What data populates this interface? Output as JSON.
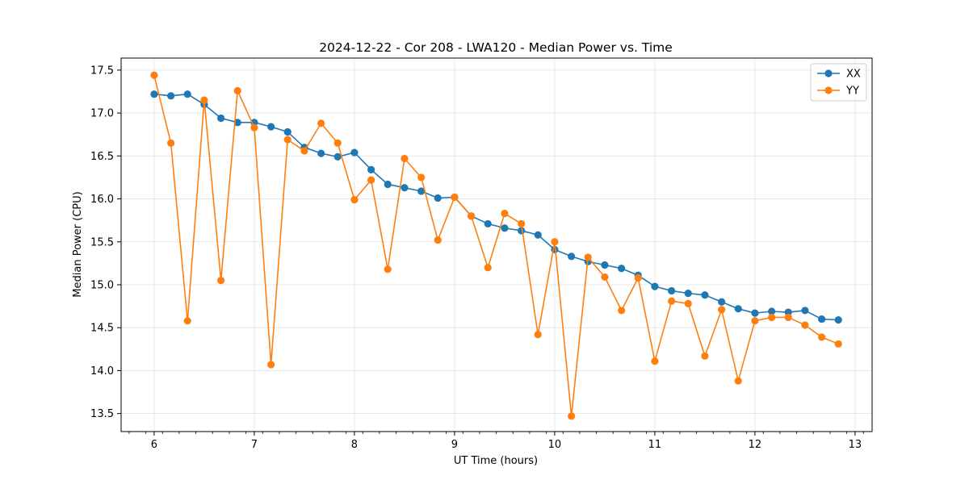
{
  "chart_data": {
    "type": "line",
    "title": "2024-12-22 - Cor 208 - LWA120 - Median Power vs. Time",
    "xlabel": "UT Time (hours)",
    "ylabel": "Median Power (CPU)",
    "xlim": [
      5.67,
      13.17
    ],
    "ylim": [
      13.29,
      17.64
    ],
    "grid": true,
    "legend_position": "top-right",
    "x_ticks": [
      6,
      7,
      8,
      9,
      10,
      11,
      12,
      13
    ],
    "x_tick_labels": [
      "6",
      "7",
      "8",
      "9",
      "10",
      "11",
      "12",
      "13"
    ],
    "x_minor_ticks": [
      5.75,
      5.917,
      6.083,
      6.25,
      6.417,
      6.583,
      6.75,
      6.917,
      7.083,
      7.25,
      7.417,
      7.583,
      7.75,
      7.917,
      8.083,
      8.25,
      8.417,
      8.583,
      8.75,
      8.917,
      9.083,
      9.25,
      9.417,
      9.583,
      9.75,
      9.917,
      10.083,
      10.25,
      10.417,
      10.583,
      10.75,
      10.917,
      11.083,
      11.25,
      11.417,
      11.583,
      11.75,
      11.917,
      12.083,
      12.25,
      12.417,
      12.583,
      12.75,
      12.917,
      13.083
    ],
    "y_ticks": [
      13.5,
      14.0,
      14.5,
      15.0,
      15.5,
      16.0,
      16.5,
      17.0,
      17.5
    ],
    "y_tick_labels": [
      "13.5",
      "14.0",
      "14.5",
      "15.0",
      "15.5",
      "16.0",
      "16.5",
      "17.0",
      "17.5"
    ],
    "x": [
      6.0,
      6.167,
      6.333,
      6.5,
      6.667,
      6.833,
      7.0,
      7.167,
      7.333,
      7.5,
      7.667,
      7.833,
      8.0,
      8.167,
      8.333,
      8.5,
      8.667,
      8.833,
      9.0,
      9.167,
      9.333,
      9.5,
      9.667,
      9.833,
      10.0,
      10.167,
      10.333,
      10.5,
      10.667,
      10.833,
      11.0,
      11.167,
      11.333,
      11.5,
      11.667,
      11.833,
      12.0,
      12.167,
      12.333,
      12.5,
      12.667,
      12.833
    ],
    "series": [
      {
        "name": "XX",
        "color": "#1f77b4",
        "values": [
          17.22,
          17.2,
          17.22,
          17.1,
          16.94,
          16.89,
          16.89,
          16.84,
          16.78,
          16.6,
          16.53,
          16.49,
          16.54,
          16.34,
          16.17,
          16.13,
          16.09,
          16.01,
          16.02,
          15.8,
          15.71,
          15.66,
          15.63,
          15.58,
          15.41,
          15.33,
          15.27,
          15.23,
          15.19,
          15.11,
          14.98,
          14.93,
          14.9,
          14.88,
          14.8,
          14.72,
          14.67,
          14.69,
          14.68,
          14.7,
          14.6,
          14.59
        ]
      },
      {
        "name": "YY",
        "color": "#ff7f0e",
        "values": [
          17.44,
          16.65,
          14.58,
          17.15,
          15.05,
          17.26,
          16.83,
          14.07,
          16.69,
          16.56,
          16.88,
          16.65,
          15.99,
          16.22,
          15.18,
          16.47,
          16.25,
          15.52,
          16.02,
          15.8,
          15.2,
          15.83,
          15.71,
          14.42,
          15.5,
          13.47,
          15.32,
          15.09,
          14.7,
          15.08,
          14.11,
          14.81,
          14.78,
          14.17,
          14.71,
          13.88,
          14.58,
          14.62,
          14.62,
          14.53,
          14.39,
          14.31
        ]
      }
    ]
  }
}
